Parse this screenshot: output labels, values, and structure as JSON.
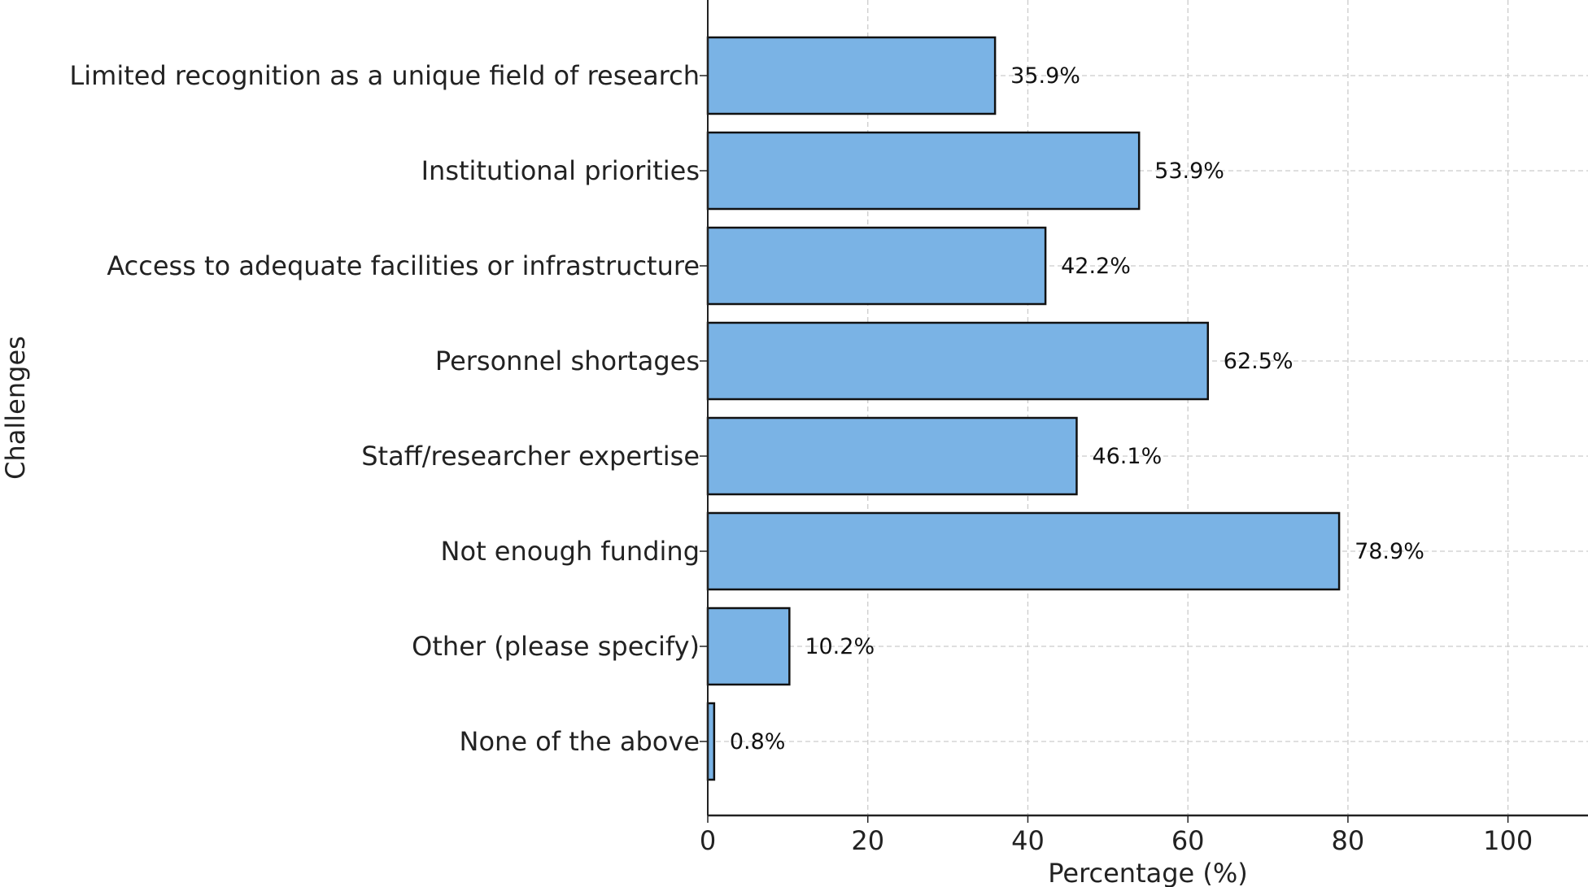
{
  "chart_data": {
    "type": "bar",
    "orientation": "horizontal",
    "categories": [
      "Limited recognition as a unique field of research",
      "Institutional priorities",
      "Access to adequate facilities or infrastructure",
      "Personnel shortages",
      "Staff/researcher expertise",
      "Not enough funding",
      "Other (please specify)",
      "None of the above"
    ],
    "values": [
      35.9,
      53.9,
      42.2,
      62.5,
      46.1,
      78.9,
      10.2,
      0.8
    ],
    "value_labels": [
      "35.9%",
      "53.9%",
      "42.2%",
      "62.5%",
      "46.1%",
      "78.9%",
      "10.2%",
      "0.8%"
    ],
    "title": "",
    "xlabel": "Percentage (%)",
    "ylabel": "Challenges",
    "xlim": [
      0,
      110
    ],
    "xticks": [
      0,
      20,
      40,
      60,
      80,
      100
    ],
    "xtick_labels": [
      "0",
      "20",
      "40",
      "60",
      "80",
      "100"
    ],
    "grid": true,
    "bar_color": "#7ab3e5",
    "bar_edge_color": "#111111",
    "grid_color": "#cccccc"
  }
}
